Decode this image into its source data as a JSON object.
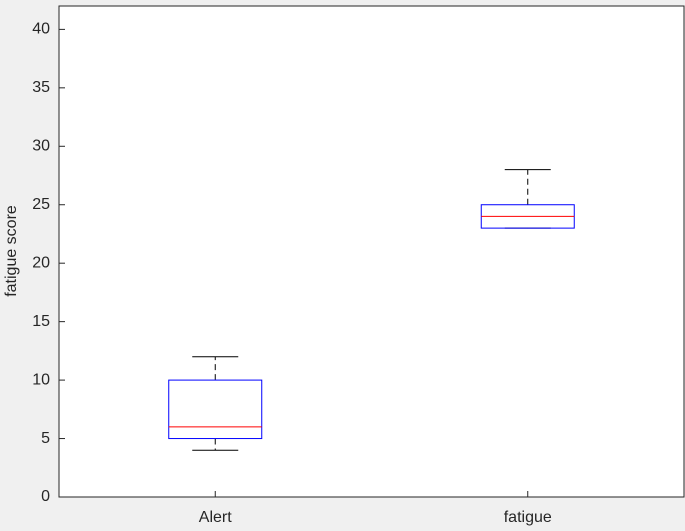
{
  "chart_data": {
    "type": "box",
    "y_label": "fatigue score",
    "categories": [
      "Alert",
      "fatigue"
    ],
    "min": [
      4,
      23
    ],
    "q1": [
      5,
      23
    ],
    "median": [
      6,
      24
    ],
    "q3": [
      10,
      25
    ],
    "max": [
      12,
      28
    ],
    "box_color": "#0000ff",
    "median_color": "#ff0000",
    "whisker_color": "#000000",
    "xlim": [
      0.5,
      2.5
    ],
    "ylim": [
      0,
      42
    ],
    "yticks": [
      0,
      5,
      10,
      15,
      20,
      25,
      30,
      35,
      40
    ],
    "grid": false
  }
}
